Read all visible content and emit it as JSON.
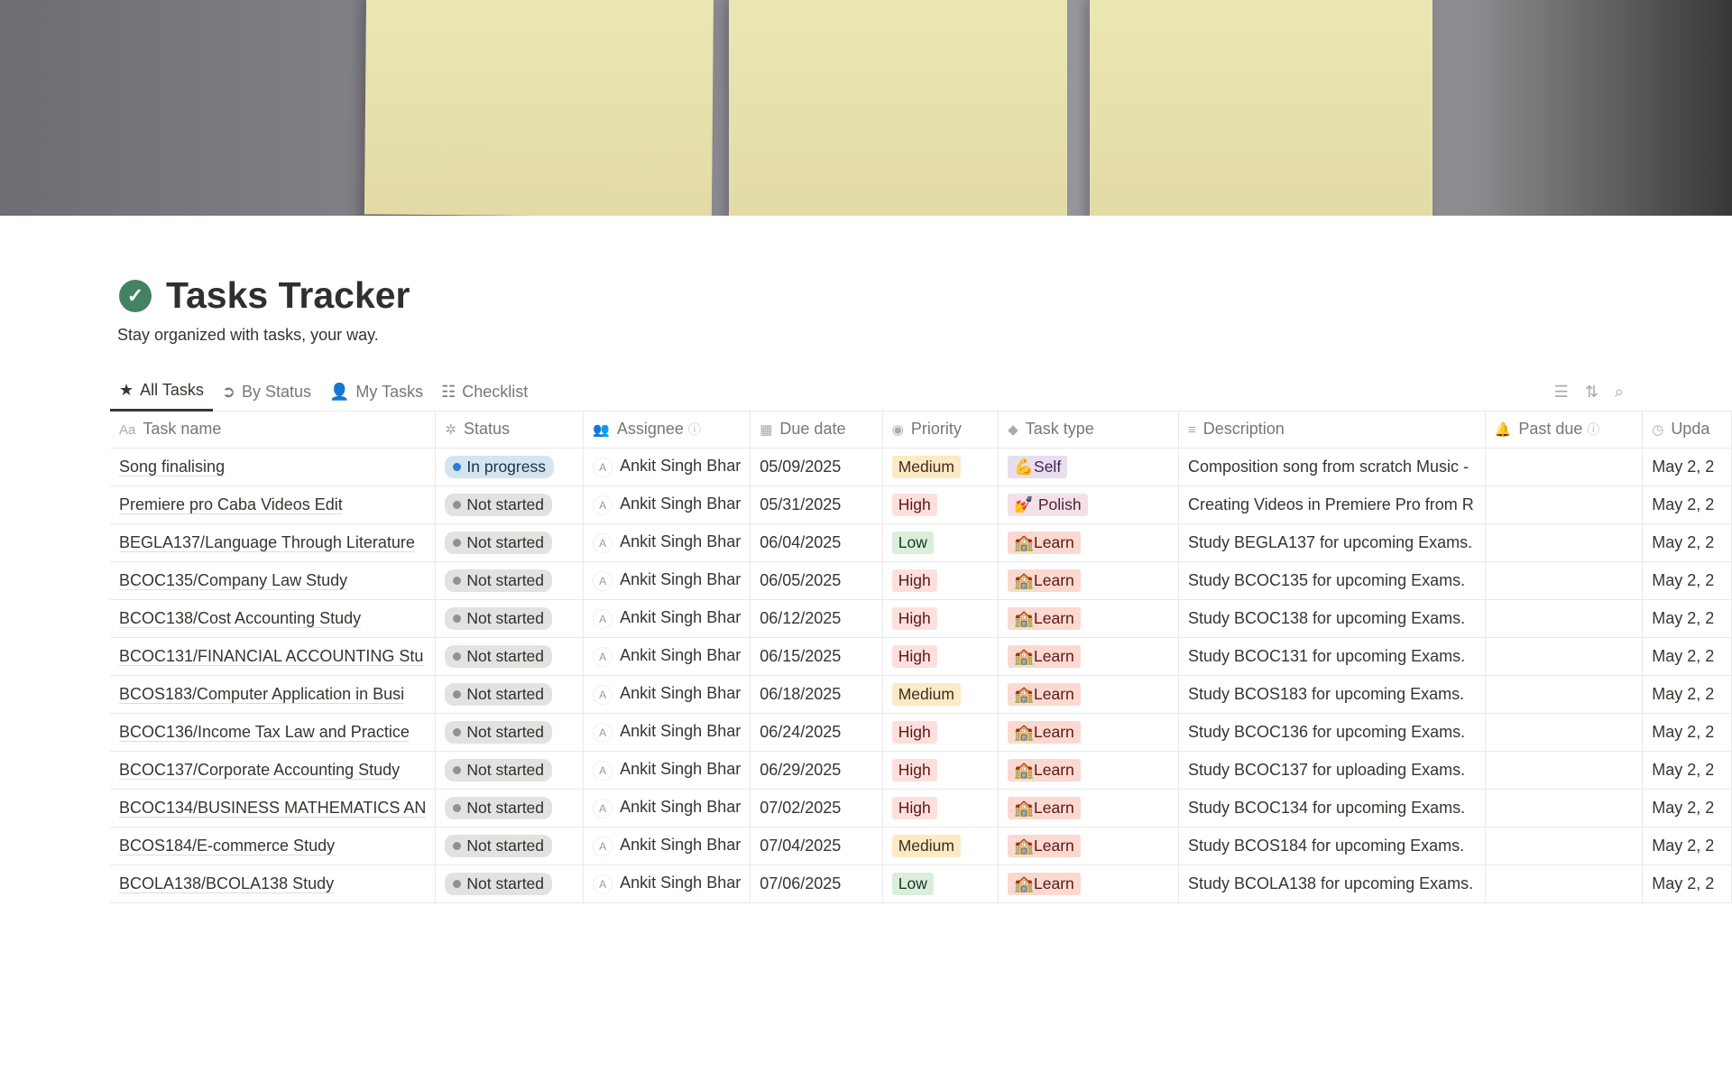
{
  "page": {
    "title": "Tasks Tracker",
    "subtitle": "Stay organized with tasks, your way.",
    "icon": "check-circle-icon",
    "accent": "#448361"
  },
  "tabs": [
    {
      "label": "All Tasks",
      "icon": "star-icon",
      "active": true
    },
    {
      "label": "By Status",
      "icon": "arrow-circle-icon"
    },
    {
      "label": "My Tasks",
      "icon": "person-icon"
    },
    {
      "label": "Checklist",
      "icon": "checklist-icon"
    }
  ],
  "toolbar": [
    "filter-icon",
    "sort-icon",
    "search-icon"
  ],
  "columns": [
    {
      "label": "Task name",
      "icon": "Aa"
    },
    {
      "label": "Status",
      "icon": "✲"
    },
    {
      "label": "Assignee",
      "icon": "👥",
      "info": true
    },
    {
      "label": "Due date",
      "icon": "▦"
    },
    {
      "label": "Priority",
      "icon": "◉"
    },
    {
      "label": "Task type",
      "icon": "◆"
    },
    {
      "label": "Description",
      "icon": "≡"
    },
    {
      "label": "Past due",
      "icon": "🔔",
      "info": true
    },
    {
      "label": "Upda",
      "icon": "◷"
    }
  ],
  "rows": [
    {
      "name": "Song finalising",
      "status": "In progress",
      "assignee": "Ankit Singh Bhar",
      "due": "05/09/2025",
      "priority": "Medium",
      "type": "💪Self",
      "typeKey": "Self",
      "desc": "Composition song from scratch Music -",
      "updated": "May 2, 2"
    },
    {
      "name": "Premiere pro Caba Videos Edit",
      "status": "Not started",
      "assignee": "Ankit Singh Bhar",
      "due": "05/31/2025",
      "priority": "High",
      "type": "💅 Polish",
      "typeKey": "Polish",
      "desc": "Creating Videos in Premiere Pro from R",
      "updated": "May 2, 2"
    },
    {
      "name": "BEGLA137/Language Through Literature",
      "status": "Not started",
      "assignee": "Ankit Singh Bhar",
      "due": "06/04/2025",
      "priority": "Low",
      "type": "🏫Learn",
      "typeKey": "Learn",
      "desc": "Study BEGLA137 for upcoming Exams.",
      "updated": "May 2, 2"
    },
    {
      "name": "BCOC135/Company Law Study",
      "status": "Not started",
      "assignee": "Ankit Singh Bhar",
      "due": "06/05/2025",
      "priority": "High",
      "type": "🏫Learn",
      "typeKey": "Learn",
      "desc": "Study BCOC135 for upcoming Exams.",
      "updated": "May 2, 2"
    },
    {
      "name": "BCOC138/Cost Accounting Study",
      "status": "Not started",
      "assignee": "Ankit Singh Bhar",
      "due": "06/12/2025",
      "priority": "High",
      "type": "🏫Learn",
      "typeKey": "Learn",
      "desc": "Study BCOC138 for upcoming Exams.",
      "updated": "May 2, 2"
    },
    {
      "name": "BCOC131/FINANCIAL ACCOUNTING Stu",
      "status": "Not started",
      "assignee": "Ankit Singh Bhar",
      "due": "06/15/2025",
      "priority": "High",
      "type": "🏫Learn",
      "typeKey": "Learn",
      "desc": "Study BCOC131 for upcoming Exams.",
      "updated": "May 2, 2"
    },
    {
      "name": "BCOS183/Computer Application in Busi",
      "status": "Not started",
      "assignee": "Ankit Singh Bhar",
      "due": "06/18/2025",
      "priority": "Medium",
      "type": "🏫Learn",
      "typeKey": "Learn",
      "desc": "Study BCOS183 for upcoming Exams.",
      "updated": "May 2, 2"
    },
    {
      "name": "BCOC136/Income Tax Law and Practice",
      "status": "Not started",
      "assignee": "Ankit Singh Bhar",
      "due": "06/24/2025",
      "priority": "High",
      "type": "🏫Learn",
      "typeKey": "Learn",
      "desc": "Study BCOC136 for upcoming Exams.",
      "updated": "May 2, 2"
    },
    {
      "name": "BCOC137/Corporate Accounting Study",
      "status": "Not started",
      "assignee": "Ankit Singh Bhar",
      "due": "06/29/2025",
      "priority": "High",
      "type": "🏫Learn",
      "typeKey": "Learn",
      "desc": "Study BCOC137 for uploading Exams.",
      "updated": "May 2, 2"
    },
    {
      "name": "BCOC134/BUSINESS MATHEMATICS AN",
      "status": "Not started",
      "assignee": "Ankit Singh Bhar",
      "due": "07/02/2025",
      "priority": "High",
      "type": "🏫Learn",
      "typeKey": "Learn",
      "desc": "Study BCOC134 for upcoming Exams.",
      "updated": "May 2, 2"
    },
    {
      "name": "BCOS184/E-commerce Study",
      "status": "Not started",
      "assignee": "Ankit Singh Bhar",
      "due": "07/04/2025",
      "priority": "Medium",
      "type": "🏫Learn",
      "typeKey": "Learn",
      "desc": "Study BCOS184 for upcoming Exams.",
      "updated": "May 2, 2"
    },
    {
      "name": "BCOLA138/BCOLA138 Study",
      "status": "Not started",
      "assignee": "Ankit Singh Bhar",
      "due": "07/06/2025",
      "priority": "Low",
      "type": "🏫Learn",
      "typeKey": "Learn",
      "desc": "Study BCOLA138 for upcoming Exams.",
      "updated": "May 2, 2"
    }
  ]
}
